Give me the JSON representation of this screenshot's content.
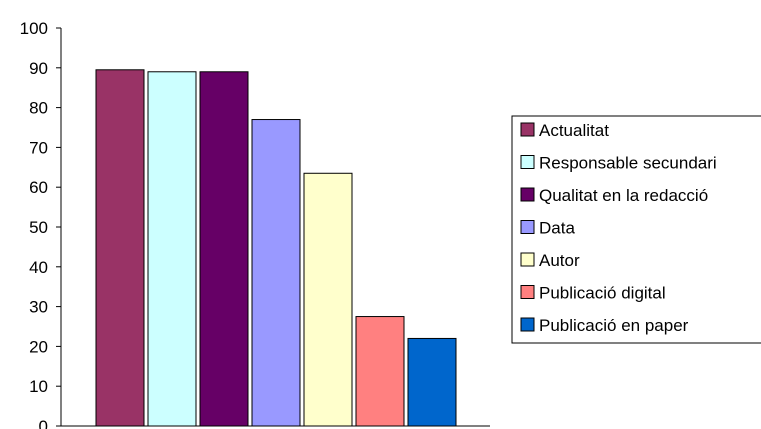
{
  "chart_data": {
    "type": "bar",
    "title": "",
    "xlabel": "",
    "ylabel": "",
    "ylim": [
      0,
      100
    ],
    "yticks": [
      0,
      10,
      20,
      30,
      40,
      50,
      60,
      70,
      80,
      90,
      100
    ],
    "grid": false,
    "legend_position": "right",
    "series": [
      {
        "name": "Actualitat",
        "value": 89.5,
        "color": "#993366"
      },
      {
        "name": "Responsable secundari",
        "value": 89,
        "color": "#CCFFFF"
      },
      {
        "name": "Qualitat en la redacció",
        "value": 89,
        "color": "#660066"
      },
      {
        "name": "Data",
        "value": 77,
        "color": "#9999FF"
      },
      {
        "name": "Autor",
        "value": 63.5,
        "color": "#FFFFCC"
      },
      {
        "name": "Publicació digital",
        "value": 27.5,
        "color": "#FF8080"
      },
      {
        "name": "Publicació en paper",
        "value": 22,
        "color": "#0066CC"
      }
    ]
  }
}
